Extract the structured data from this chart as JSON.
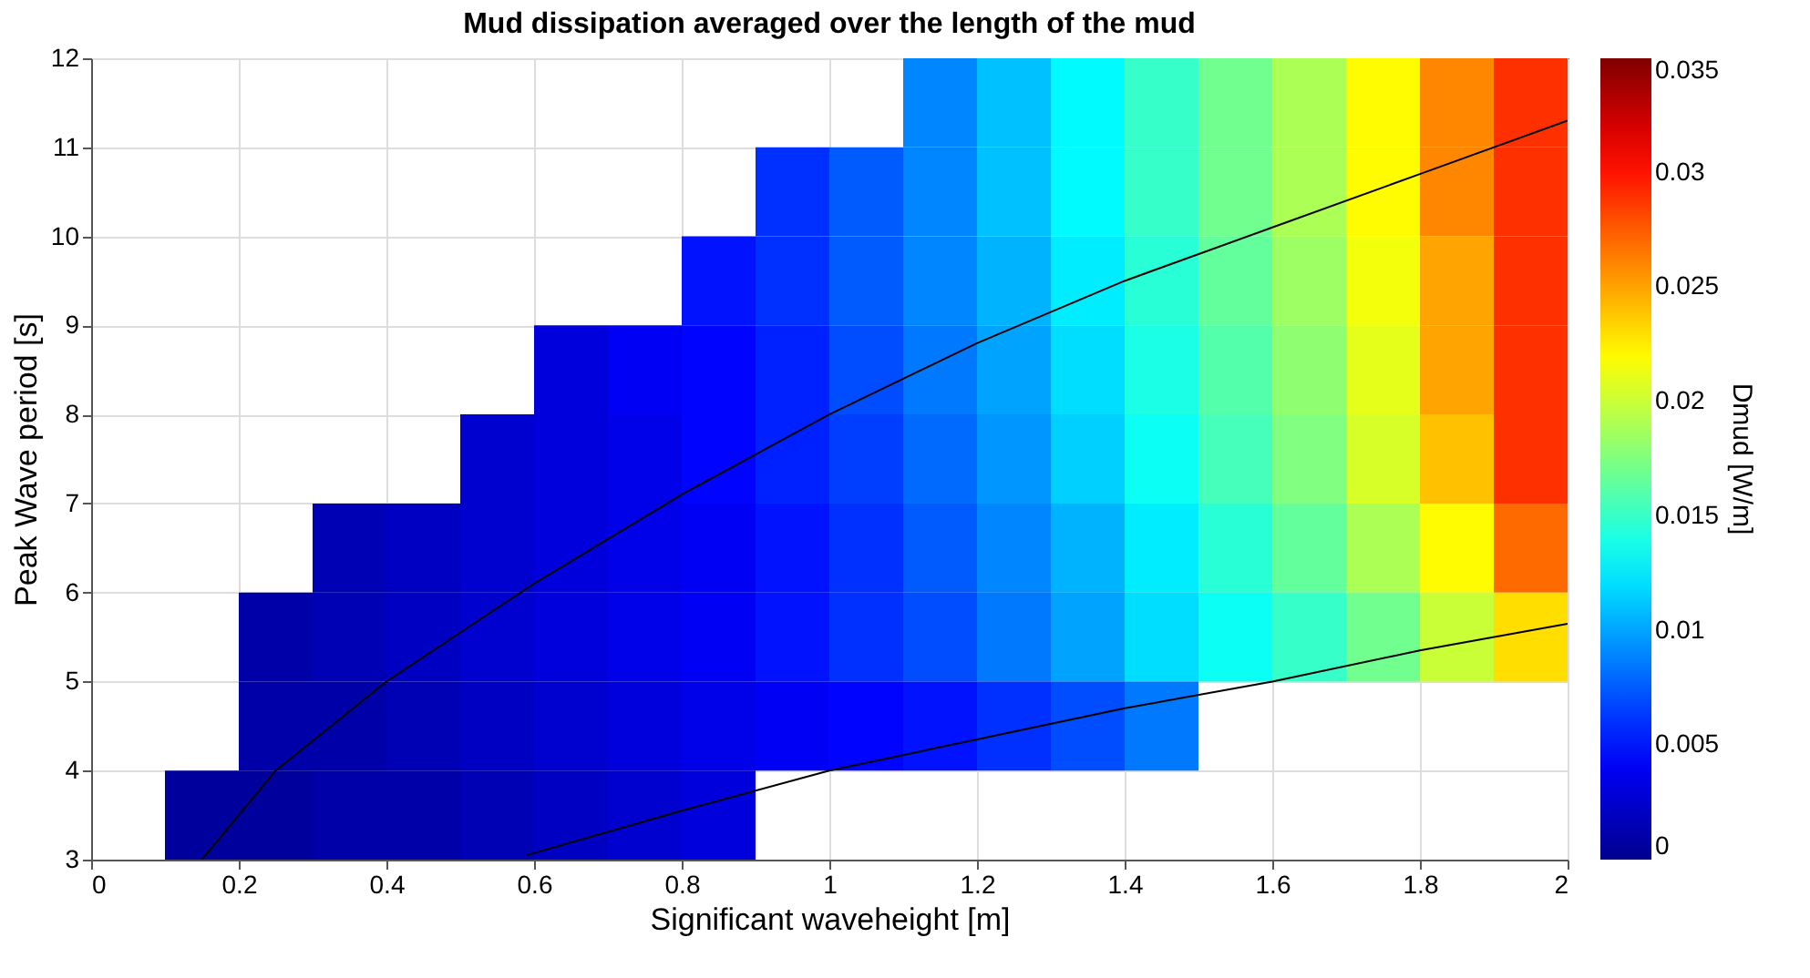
{
  "chart_data": {
    "type": "heatmap",
    "title": "Mud dissipation averaged over the length of the mud",
    "xlabel": "Significant waveheight [m]",
    "ylabel": "Peak Wave period [s]",
    "clabel": "Dmud [W/m]",
    "x": [
      0.05,
      0.15,
      0.25,
      0.35,
      0.45,
      0.55,
      0.65,
      0.75,
      0.85,
      0.95,
      1.05,
      1.15,
      1.25,
      1.35,
      1.45,
      1.55,
      1.65,
      1.75,
      1.85,
      1.95
    ],
    "y": [
      11.5,
      10.5,
      9.5,
      8.5,
      7.5,
      6.5,
      5.5,
      4.5,
      3.5
    ],
    "cells": [
      [
        null,
        null,
        null,
        null,
        null,
        null,
        null,
        null,
        null,
        null,
        null,
        0.009,
        0.011,
        0.013,
        0.015,
        0.017,
        0.019,
        0.022,
        0.026,
        0.029
      ],
      [
        null,
        null,
        null,
        null,
        null,
        null,
        null,
        null,
        null,
        0.006,
        0.0075,
        0.009,
        0.011,
        0.013,
        0.015,
        0.017,
        0.019,
        0.022,
        0.026,
        0.029
      ],
      [
        null,
        null,
        null,
        null,
        null,
        null,
        null,
        null,
        0.005,
        0.006,
        0.0075,
        0.009,
        0.0105,
        0.0125,
        0.0145,
        0.0165,
        0.0185,
        0.0215,
        0.025,
        0.029
      ],
      [
        null,
        null,
        null,
        null,
        null,
        null,
        0.003,
        0.004,
        0.0045,
        0.0055,
        0.007,
        0.0085,
        0.01,
        0.012,
        0.014,
        0.016,
        0.018,
        0.021,
        0.025,
        0.029
      ],
      [
        null,
        null,
        null,
        null,
        null,
        0.0025,
        0.003,
        0.0035,
        0.0045,
        0.0055,
        0.0065,
        0.008,
        0.0095,
        0.0115,
        0.0135,
        0.0155,
        0.0175,
        0.0205,
        0.024,
        0.029
      ],
      [
        null,
        null,
        null,
        0.0015,
        0.002,
        0.0025,
        0.003,
        0.0035,
        0.004,
        0.005,
        0.006,
        0.0075,
        0.009,
        0.0105,
        0.0125,
        0.0145,
        0.0165,
        0.019,
        0.022,
        0.027
      ],
      [
        null,
        null,
        0.001,
        0.0015,
        0.002,
        0.0025,
        0.003,
        0.0035,
        0.004,
        0.005,
        0.006,
        0.007,
        0.0085,
        0.01,
        0.012,
        0.0135,
        0.015,
        0.017,
        0.02,
        0.023
      ],
      [
        null,
        null,
        0.001,
        0.001,
        0.0015,
        0.002,
        0.0025,
        0.003,
        0.0035,
        0.004,
        0.0045,
        0.005,
        0.006,
        0.007,
        0.0085,
        null,
        null,
        null,
        null,
        null
      ],
      [
        null,
        0.0005,
        0.0005,
        0.001,
        0.001,
        0.0015,
        0.002,
        0.0025,
        0.003,
        null,
        null,
        null,
        null,
        null,
        null,
        null,
        null,
        null,
        null,
        null
      ]
    ],
    "clim": [
      0,
      0.035
    ],
    "cticks": [
      0,
      0.005,
      0.01,
      0.015,
      0.02,
      0.025,
      0.03,
      0.035
    ],
    "xlim": [
      0,
      2
    ],
    "xticks": [
      0,
      0.2,
      0.4,
      0.6,
      0.8,
      1,
      1.2,
      1.4,
      1.6,
      1.8,
      2
    ],
    "ylim": [
      3,
      12
    ],
    "yticks": [
      3,
      4,
      5,
      6,
      7,
      8,
      9,
      10,
      11,
      12
    ],
    "grid": true,
    "series": [
      {
        "type": "line",
        "color": "#000000",
        "x": [
          0.15,
          0.25,
          0.4,
          0.6,
          0.8,
          1,
          1.2,
          1.4,
          1.6,
          1.8,
          2
        ],
        "values": [
          3,
          4,
          5,
          6.1,
          7.1,
          8,
          8.8,
          9.5,
          10.1,
          10.7,
          11.3
        ]
      },
      {
        "type": "line",
        "color": "#000000",
        "x": [
          0.59,
          0.8,
          1,
          1.2,
          1.4,
          1.6,
          1.8,
          2
        ],
        "values": [
          3.05,
          3.55,
          4,
          4.35,
          4.7,
          5,
          5.35,
          5.65
        ]
      }
    ]
  }
}
